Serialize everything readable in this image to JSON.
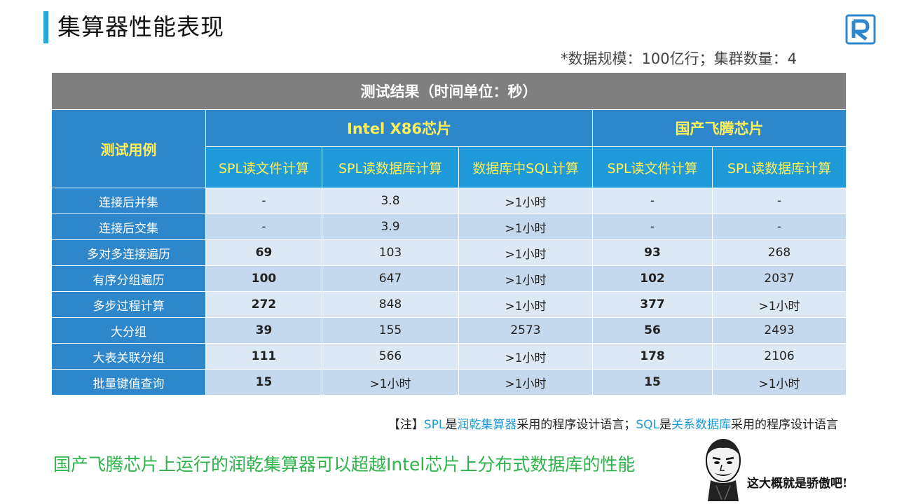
{
  "page": {
    "title": "集算器性能表现",
    "meta": "*数据规模：100亿行；集群数量：4"
  },
  "table": {
    "title": "测试结果（时间单位：秒）",
    "case_header": "测试用例",
    "groups": [
      "Intel X86芯片",
      "国产飞腾芯片"
    ],
    "subheaders": [
      "SPL读文件计算",
      "SPL读数据库计算",
      "数据库中SQL计算",
      "SPL读文件计算",
      "SPL读数据库计算"
    ],
    "rows": [
      {
        "case": "连接后并集",
        "values": [
          "-",
          "3.8",
          ">1小时",
          "-",
          "-"
        ]
      },
      {
        "case": "连接后交集",
        "values": [
          "-",
          "3.9",
          ">1小时",
          "-",
          "-"
        ]
      },
      {
        "case": "多对多连接遍历",
        "values": [
          "69",
          "103",
          ">1小时",
          "93",
          "268"
        ]
      },
      {
        "case": "有序分组遍历",
        "values": [
          "100",
          "647",
          ">1小时",
          "102",
          "2037"
        ]
      },
      {
        "case": "多步过程计算",
        "values": [
          "272",
          "848",
          ">1小时",
          "377",
          ">1小时"
        ]
      },
      {
        "case": "大分组",
        "values": [
          "39",
          "155",
          "2573",
          "56",
          "2493"
        ]
      },
      {
        "case": "大表关联分组",
        "values": [
          "111",
          "566",
          ">1小时",
          "178",
          "2106"
        ]
      },
      {
        "case": "批量键值查询",
        "values": [
          "15",
          ">1小时",
          ">1小时",
          "15",
          ">1小时"
        ]
      }
    ]
  },
  "note": {
    "prefix": "【注】",
    "spl": "SPL",
    "is1": "是",
    "product": "润乾集算器",
    "mid": "采用的程序设计语言；",
    "sql": "SQL",
    "is2": "是",
    "db": "关系数据库",
    "suffix": "采用的程序设计语言"
  },
  "conclusion": "国产飞腾芯片上运行的润乾集算器可以超越Intel芯片上分布式数据库的性能",
  "meme": {
    "caption": "这大概就是骄傲吧!"
  },
  "icons": {
    "logo": "R-logo-icon",
    "meme": "meme-face-icon"
  },
  "colors": {
    "accent": "#2aa7d8",
    "header_blue": "#2e86cb",
    "sub_blue": "#1f9bd9",
    "yellow": "#ffef5a",
    "green": "#2fb34a",
    "gray": "#7f7f7f"
  }
}
